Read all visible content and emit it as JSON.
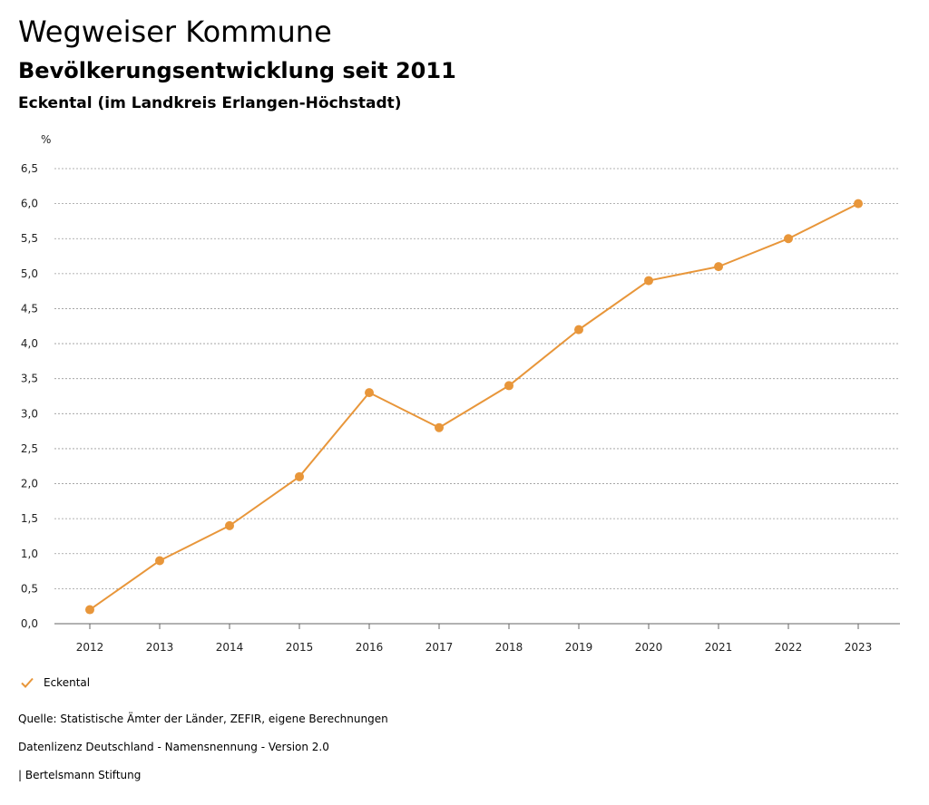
{
  "header": {
    "title": "Wegweiser Kommune",
    "subtitle": "Bevölkerungsentwicklung seit 2011",
    "region": "Eckental (im Landkreis Erlangen-Höchstadt)"
  },
  "legend": {
    "label": "Eckental",
    "icon": "check-icon"
  },
  "footer": {
    "source": "Quelle: Statistische Ämter der Länder, ZEFIR, eigene Berechnungen",
    "license": "Datenlizenz Deutschland - Namensnennung - Version 2.0",
    "publisher": "| Bertelsmann Stiftung"
  },
  "colors": {
    "series": "#E8963A",
    "grid": "#999999",
    "axis": "#666666"
  },
  "chart_data": {
    "type": "line",
    "title": "",
    "xlabel": "",
    "ylabel": "%",
    "ylim": [
      0,
      6.5
    ],
    "yticks": [
      "0,0",
      "0,5",
      "1,0",
      "1,5",
      "2,0",
      "2,5",
      "3,0",
      "3,5",
      "4,0",
      "4,5",
      "5,0",
      "5,5",
      "6,0",
      "6,5"
    ],
    "categories": [
      "2012",
      "2013",
      "2014",
      "2015",
      "2016",
      "2017",
      "2018",
      "2019",
      "2020",
      "2021",
      "2022",
      "2023"
    ],
    "grid": true,
    "legend_position": "bottom-left",
    "series": [
      {
        "name": "Eckental",
        "values": [
          0.2,
          0.9,
          1.4,
          2.1,
          3.3,
          2.8,
          3.4,
          4.2,
          4.9,
          5.1,
          5.5,
          6.0
        ]
      }
    ]
  }
}
